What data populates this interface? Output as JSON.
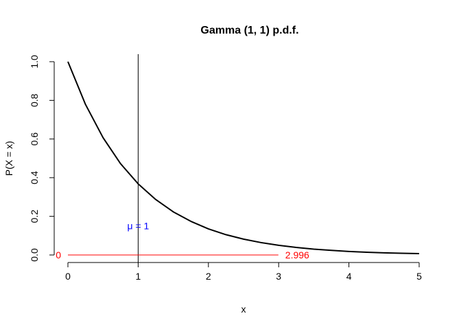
{
  "chart_data": {
    "type": "line",
    "title": "Gamma (1, 1) p.d.f.",
    "xlabel": "x",
    "ylabel": "P(X = x)",
    "xlim": [
      0,
      5
    ],
    "ylim": [
      0,
      1
    ],
    "x_ticks": [
      0,
      1,
      2,
      3,
      4,
      5
    ],
    "y_ticks": [
      0.0,
      0.2,
      0.4,
      0.6,
      0.8,
      1.0
    ],
    "x_tick_labels": [
      "0",
      "1",
      "2",
      "3",
      "4",
      "5"
    ],
    "y_tick_labels": [
      "0.0",
      "0.2",
      "0.4",
      "0.6",
      "0.8",
      "1.0"
    ],
    "grid": false,
    "series": [
      {
        "color": "#000000",
        "x": [
          0,
          0.25,
          0.5,
          0.75,
          1,
          1.25,
          1.5,
          1.75,
          2,
          2.25,
          2.5,
          2.75,
          3,
          3.25,
          3.5,
          3.75,
          4,
          4.25,
          4.5,
          4.75,
          5
        ],
        "y": [
          1.0,
          0.779,
          0.607,
          0.472,
          0.368,
          0.287,
          0.223,
          0.174,
          0.135,
          0.105,
          0.082,
          0.064,
          0.05,
          0.039,
          0.03,
          0.024,
          0.018,
          0.014,
          0.011,
          0.009,
          0.007
        ]
      }
    ],
    "mean_line": {
      "x": 1,
      "color": "#000000"
    },
    "mean_label": {
      "text": "μ = 1",
      "x": 1,
      "y": 0.15,
      "color": "#0000ff"
    },
    "interval": {
      "from": 0,
      "to": 2.996,
      "y": 0,
      "color": "#ff0000",
      "label_from": "0",
      "label_to": "2.996"
    }
  }
}
